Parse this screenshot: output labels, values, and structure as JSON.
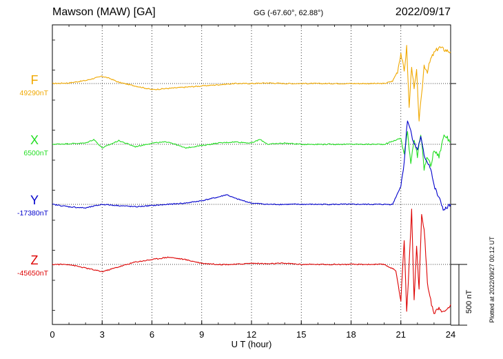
{
  "header": {
    "station": "Mawson (MAW)  [GA]",
    "coords": "GG (-67.60°,  62.88°)",
    "date": "2022/09/17",
    "plotted": "Plotted at 2022/09/27 00:12 UT"
  },
  "chart_data": {
    "type": "line",
    "title": "Mawson (MAW)  [GA]",
    "xlabel": "U T (hour)",
    "x_ticks": [
      "0",
      "3",
      "6",
      "9",
      "12",
      "15",
      "18",
      "21",
      "24"
    ],
    "xlim": [
      0,
      24
    ],
    "grid": "vertical dotted every 3 hours",
    "scale_bar": {
      "label": "500 nT",
      "value": 500
    },
    "series": [
      {
        "name": "F",
        "baseline_label": "49290nT",
        "color": "#f0a800",
        "deviation_nT": {
          "x": [
            0,
            1,
            2,
            3,
            3.5,
            4,
            5,
            6,
            7,
            8,
            9,
            10,
            11,
            12,
            13,
            14,
            15,
            16,
            17,
            18,
            19,
            20,
            20.5,
            20.8,
            21,
            21.2,
            21.35,
            21.5,
            21.65,
            21.8,
            21.95,
            22.1,
            22.25,
            22.4,
            22.6,
            22.8,
            23,
            23.3,
            23.6,
            24
          ],
          "y": [
            0,
            5,
            25,
            60,
            40,
            10,
            -20,
            -50,
            -40,
            -30,
            -20,
            -10,
            0,
            0,
            5,
            0,
            0,
            0,
            0,
            0,
            0,
            0,
            20,
            100,
            250,
            100,
            300,
            -200,
            150,
            -50,
            100,
            -300,
            -100,
            150,
            100,
            200,
            250,
            300,
            280,
            260
          ]
        }
      },
      {
        "name": "X",
        "baseline_label": "6500nT",
        "color": "#22dd22",
        "deviation_nT": {
          "x": [
            0,
            1,
            2,
            2.5,
            3,
            4,
            5,
            6,
            7,
            8,
            9,
            10,
            11,
            12,
            12.5,
            13,
            14,
            15,
            16,
            17,
            18,
            19,
            20,
            21,
            21.2,
            21.4,
            21.6,
            21.8,
            22,
            22.2,
            22.4,
            22.6,
            22.8,
            23,
            23.3,
            23.6,
            24
          ],
          "y": [
            0,
            5,
            10,
            40,
            -30,
            30,
            -20,
            10,
            20,
            -30,
            -10,
            10,
            20,
            10,
            40,
            0,
            10,
            0,
            0,
            0,
            0,
            0,
            0,
            50,
            -80,
            100,
            -150,
            50,
            -100,
            80,
            -200,
            -100,
            -180,
            -50,
            -100,
            80,
            20
          ]
        }
      },
      {
        "name": "Y",
        "baseline_label": "-17380nT",
        "color": "#0000cc",
        "deviation_nT": {
          "x": [
            0,
            1,
            2,
            3,
            4,
            5,
            6,
            7,
            8,
            9,
            10,
            10.5,
            11,
            12,
            13,
            14,
            15,
            16,
            17,
            18,
            19,
            20,
            20.5,
            21,
            21.2,
            21.4,
            21.6,
            21.8,
            22,
            22.2,
            22.4,
            22.6,
            22.8,
            23,
            23.3,
            23.6,
            24
          ],
          "y": [
            0,
            -20,
            -30,
            0,
            -10,
            -20,
            -10,
            0,
            10,
            30,
            60,
            80,
            50,
            10,
            0,
            0,
            0,
            0,
            0,
            0,
            0,
            0,
            0,
            150,
            350,
            700,
            600,
            500,
            450,
            550,
            400,
            350,
            300,
            150,
            50,
            -50,
            0
          ]
        }
      },
      {
        "name": "Z",
        "baseline_label": "-45650nT",
        "color": "#dd0000",
        "deviation_nT": {
          "x": [
            0,
            1,
            2,
            3,
            4,
            5,
            6,
            7,
            8,
            9,
            10,
            11,
            12,
            13,
            14,
            15,
            16,
            17,
            18,
            19,
            20,
            20.7,
            21,
            21.2,
            21.35,
            21.5,
            21.65,
            21.8,
            21.95,
            22.1,
            22.25,
            22.4,
            22.6,
            22.8,
            23,
            23.3,
            23.6,
            24
          ],
          "y": [
            0,
            0,
            -30,
            -60,
            -20,
            20,
            40,
            60,
            40,
            10,
            0,
            0,
            10,
            5,
            10,
            0,
            0,
            0,
            0,
            0,
            0,
            -50,
            -300,
            200,
            -400,
            0,
            450,
            -300,
            150,
            -200,
            400,
            300,
            -150,
            -300,
            -400,
            -350,
            -400,
            -330
          ]
        }
      }
    ]
  }
}
